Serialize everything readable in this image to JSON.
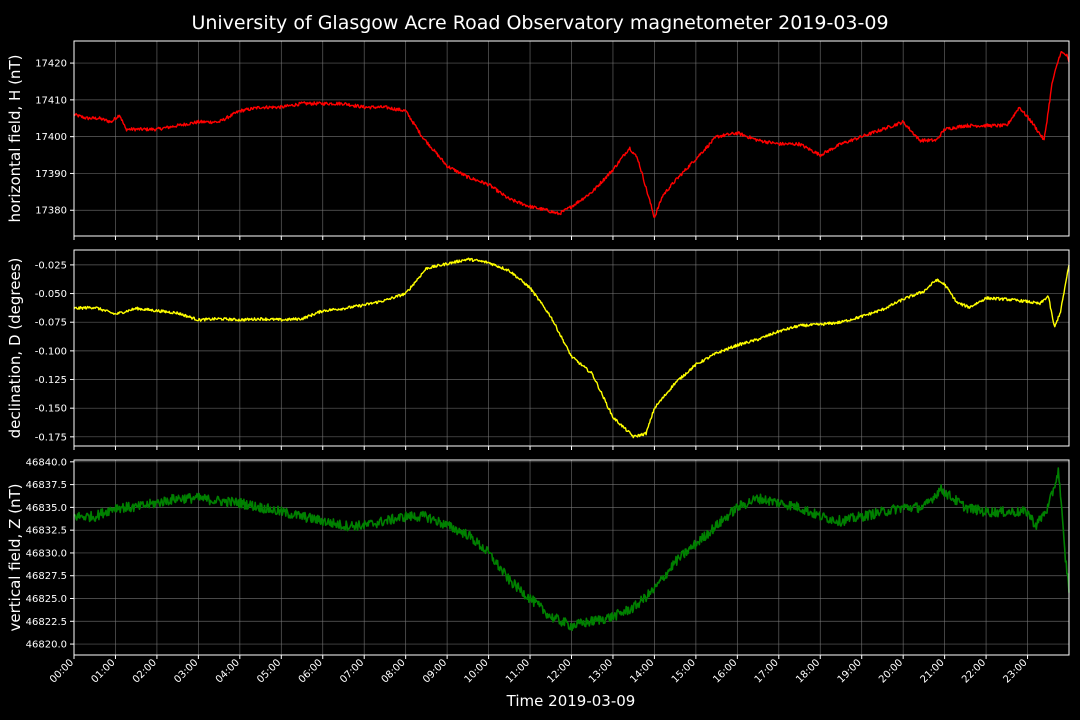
{
  "title": "University of Glasgow Acre Road Observatory magnetometer 2019-03-09",
  "xlabel": "Time 2019-03-09",
  "colors": {
    "background": "#000000",
    "grid": "#808080",
    "axes": "#ffffff"
  },
  "chart_data": [
    {
      "type": "line",
      "ylabel": "horizontal field, H (nT)",
      "color": "#ff0000",
      "ylim": [
        17373,
        17426
      ],
      "xlim": [
        0,
        24
      ],
      "yticks": [
        "17380",
        "17390",
        "17400",
        "17410",
        "17420"
      ],
      "grid": true,
      "x": [
        0,
        0.3,
        0.6,
        0.9,
        1.1,
        1.25,
        1.5,
        2.0,
        2.5,
        3.0,
        3.5,
        4.0,
        4.5,
        5.0,
        5.5,
        6.0,
        6.5,
        7.0,
        7.5,
        8.0,
        8.4,
        8.7,
        9.0,
        9.5,
        10.0,
        10.5,
        11.0,
        11.4,
        11.7,
        12.0,
        12.5,
        13.0,
        13.4,
        13.6,
        13.85,
        14.0,
        14.2,
        14.5,
        15.0,
        15.5,
        16.0,
        16.5,
        17.0,
        17.5,
        18.0,
        18.5,
        19.0,
        19.5,
        20.0,
        20.4,
        20.8,
        21.0,
        21.5,
        22.0,
        22.5,
        22.8,
        23.1,
        23.4,
        23.6,
        23.8,
        23.95,
        24.0
      ],
      "values": [
        17406,
        17405,
        17405,
        17404,
        17406,
        17402,
        17402,
        17402,
        17403,
        17404,
        17404,
        17407,
        17408,
        17408,
        17409,
        17409,
        17409,
        17408,
        17408,
        17407,
        17400,
        17396,
        17392,
        17389,
        17387,
        17383,
        17381,
        17380,
        17379,
        17381,
        17385,
        17391,
        17397,
        17394,
        17384,
        17378,
        17384,
        17388,
        17394,
        17400,
        17401,
        17399,
        17398,
        17398,
        17395,
        17398,
        17400,
        17402,
        17404,
        17399,
        17399,
        17402,
        17403,
        17403,
        17403,
        17408,
        17404,
        17399,
        17415,
        17423,
        17422,
        17420
      ]
    },
    {
      "type": "line",
      "ylabel": "declination, D (degrees)",
      "color": "#ffff00",
      "ylim": [
        -0.183,
        -0.012
      ],
      "xlim": [
        0,
        24
      ],
      "yticks": [
        "-0.025",
        "-0.050",
        "-0.075",
        "-0.100",
        "-0.125",
        "-0.150",
        "-0.175"
      ],
      "grid": true,
      "x": [
        0,
        0.5,
        1.0,
        1.5,
        2.0,
        2.5,
        3.0,
        3.5,
        4.0,
        4.5,
        5.0,
        5.5,
        6.0,
        6.5,
        7.0,
        7.5,
        8.0,
        8.5,
        9.0,
        9.5,
        10.0,
        10.5,
        11.0,
        11.5,
        12.0,
        12.5,
        13.0,
        13.5,
        13.8,
        14.0,
        14.5,
        15.0,
        15.5,
        16.0,
        16.5,
        17.0,
        17.5,
        18.0,
        18.5,
        19.0,
        19.5,
        20.0,
        20.5,
        20.8,
        21.0,
        21.3,
        21.6,
        22.0,
        22.5,
        23.0,
        23.3,
        23.5,
        23.65,
        23.8,
        24.0
      ],
      "values": [
        -0.063,
        -0.062,
        -0.068,
        -0.063,
        -0.065,
        -0.067,
        -0.073,
        -0.072,
        -0.073,
        -0.072,
        -0.073,
        -0.072,
        -0.065,
        -0.063,
        -0.06,
        -0.056,
        -0.05,
        -0.028,
        -0.024,
        -0.02,
        -0.023,
        -0.03,
        -0.045,
        -0.07,
        -0.105,
        -0.12,
        -0.158,
        -0.175,
        -0.172,
        -0.15,
        -0.128,
        -0.112,
        -0.102,
        -0.095,
        -0.09,
        -0.083,
        -0.078,
        -0.077,
        -0.075,
        -0.07,
        -0.064,
        -0.055,
        -0.048,
        -0.038,
        -0.042,
        -0.058,
        -0.062,
        -0.054,
        -0.055,
        -0.057,
        -0.059,
        -0.052,
        -0.08,
        -0.065,
        -0.025
      ]
    },
    {
      "type": "line",
      "ylabel": "vertical field, Z (nT)",
      "color": "#008000",
      "ylim": [
        46818.8,
        46840.2
      ],
      "xlim": [
        0,
        24
      ],
      "yticks": [
        "46820.0",
        "46822.5",
        "46825.0",
        "46827.5",
        "46830.0",
        "46832.5",
        "46835.0",
        "46837.5",
        "46840.0"
      ],
      "grid": true,
      "x": [
        0,
        0.5,
        1.0,
        1.5,
        2.0,
        2.5,
        3.0,
        3.5,
        4.0,
        4.5,
        5.0,
        5.5,
        6.0,
        6.5,
        7.0,
        7.5,
        8.0,
        8.5,
        9.0,
        9.5,
        10.0,
        10.5,
        11.0,
        11.5,
        12.0,
        12.5,
        13.0,
        13.5,
        14.0,
        14.5,
        15.0,
        15.5,
        16.0,
        16.5,
        17.0,
        17.5,
        18.0,
        18.5,
        19.0,
        19.5,
        20.0,
        20.5,
        20.9,
        21.2,
        21.5,
        22.0,
        22.5,
        23.0,
        23.2,
        23.5,
        23.75,
        23.9,
        24.0
      ],
      "values": [
        46834,
        46834,
        46835,
        46835,
        46835.5,
        46836,
        46836,
        46835.7,
        46835.5,
        46835,
        46834.5,
        46834,
        46833.5,
        46833,
        46833,
        46833.5,
        46834,
        46834,
        46833,
        46832,
        46830,
        46827,
        46825,
        46823,
        46822,
        46822.5,
        46823,
        46824,
        46826,
        46829,
        46831,
        46833,
        46835,
        46836,
        46835.5,
        46835,
        46834,
        46833.5,
        46834,
        46834.5,
        46835,
        46835,
        46837,
        46836,
        46835,
        46834.5,
        46834.5,
        46834.5,
        46833,
        46835,
        46839,
        46830,
        46826
      ]
    }
  ],
  "xticks": [
    "00:00",
    "01:00",
    "02:00",
    "03:00",
    "04:00",
    "05:00",
    "06:00",
    "07:00",
    "08:00",
    "09:00",
    "10:00",
    "11:00",
    "12:00",
    "13:00",
    "14:00",
    "15:00",
    "16:00",
    "17:00",
    "18:00",
    "19:00",
    "20:00",
    "21:00",
    "22:00",
    "23:00"
  ]
}
